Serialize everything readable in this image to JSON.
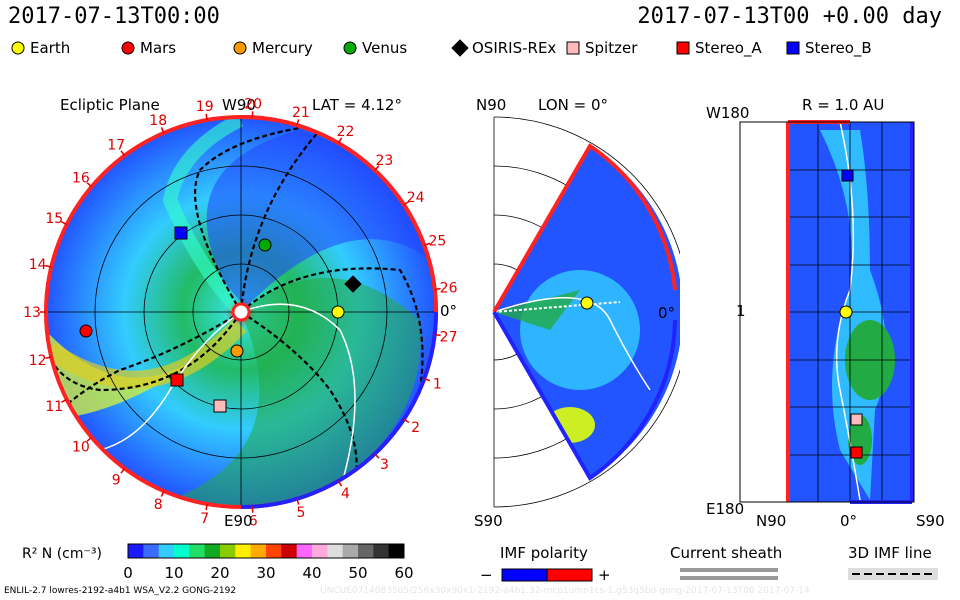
{
  "header": {
    "date_left": "2017-07-13T00:00",
    "date_right": "2017-07-13T00 +0.00 day"
  },
  "legend": [
    {
      "label": "Earth",
      "marker": "circle",
      "color": "#ffff00"
    },
    {
      "label": "Mars",
      "marker": "circle",
      "color": "#ff0000"
    },
    {
      "label": "Mercury",
      "marker": "circle",
      "color": "#ff9900"
    },
    {
      "label": "Venus",
      "marker": "circle",
      "color": "#00aa00"
    },
    {
      "label": "OSIRIS-REx",
      "marker": "diamond",
      "color": "#000000"
    },
    {
      "label": "Spitzer",
      "marker": "square",
      "color": "#ffbbbb"
    },
    {
      "label": "Stereo_A",
      "marker": "square",
      "color": "#ff0000"
    },
    {
      "label": "Stereo_B",
      "marker": "square",
      "color": "#0000ff"
    }
  ],
  "panels": {
    "ecliptic": {
      "title": "Ecliptic Plane",
      "top_label": "W90",
      "bottom_label": "E90",
      "right_label": "0°",
      "lat_label": "LAT = 4.12°",
      "carrington_ticks": [
        "19",
        "20",
        "21",
        "22",
        "23",
        "24",
        "25",
        "26",
        "27",
        "1",
        "2",
        "3",
        "4",
        "5",
        "6",
        "7",
        "8",
        "9",
        "10",
        "11",
        "12",
        "13",
        "14",
        "15",
        "16",
        "17",
        "18"
      ]
    },
    "meridional": {
      "top_label": "N90",
      "bottom_label": "S90",
      "right_label": "0°",
      "lon_label": "LON = 0°"
    },
    "radial": {
      "title": "R = 1.0 AU",
      "y_top_label": "W180",
      "y_mid_label": "1",
      "y_bottom_label": "E180",
      "x_labels": [
        "N90",
        "0°",
        "S90"
      ]
    }
  },
  "colorbar": {
    "label": "R² N (cm⁻³)",
    "ticks": [
      "0",
      "10",
      "20",
      "30",
      "40",
      "50",
      "60"
    ],
    "colors": [
      "#1a1aff",
      "#3a6cff",
      "#33ccff",
      "#00ffcc",
      "#22dd66",
      "#11aa22",
      "#88cc00",
      "#ffee00",
      "#ffaa00",
      "#ff4400",
      "#cc0000",
      "#ff66ff",
      "#ffaadd",
      "#dddddd",
      "#aaaaaa",
      "#666666",
      "#333333",
      "#000000"
    ]
  },
  "footer_legends": {
    "imf_polarity": {
      "label": "IMF polarity",
      "minus": "−",
      "plus": "+"
    },
    "current_sheath": {
      "label": "Current sheath"
    },
    "imf_line": {
      "label": "3D IMF line"
    }
  },
  "footer_text": "ENLIL-2.7 lowres-2192-a4b1 WSA_V2.2 GONG-2192",
  "watermark_text": "UNCUE0714083505/256x30x90x1-2192-a4b1.32-mcp1umn1cs-1.g53q5bd-gong-2017-07-13T00 2017-07-14"
}
